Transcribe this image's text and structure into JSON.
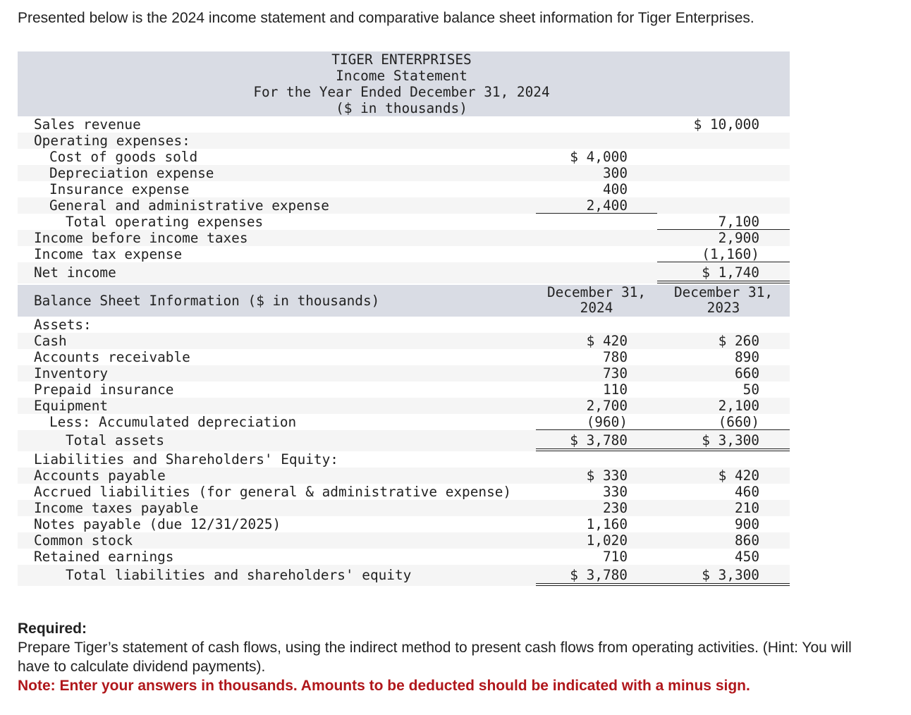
{
  "intro": "Presented below is the 2024 income statement and comparative balance sheet information for Tiger Enterprises.",
  "income_statement": {
    "header": [
      "TIGER ENTERPRISES",
      "Income Statement",
      "For the Year Ended December 31, 2024",
      "($ in thousands)"
    ],
    "rows": [
      {
        "label": "Sales revenue",
        "indent": 0,
        "c1": "",
        "c2": "$ 10,000",
        "shade": false
      },
      {
        "label": "Operating expenses:",
        "indent": 0,
        "c1": "",
        "c2": "",
        "shade": true
      },
      {
        "label": "Cost of goods sold",
        "indent": 1,
        "c1": "$ 4,000",
        "c2": "",
        "shade": false
      },
      {
        "label": "Depreciation expense",
        "indent": 1,
        "c1": "300",
        "c2": "",
        "shade": true
      },
      {
        "label": "Insurance expense",
        "indent": 1,
        "c1": "400",
        "c2": "",
        "shade": false
      },
      {
        "label": "General and administrative expense",
        "indent": 1,
        "c1": "2,400",
        "c2": "",
        "shade": true,
        "u1": "single"
      },
      {
        "label": "Total operating expenses",
        "indent": 2,
        "c1": "",
        "c2": "7,100",
        "shade": false,
        "u2": "single"
      },
      {
        "label": "Income before income taxes",
        "indent": 0,
        "c1": "",
        "c2": "2,900",
        "shade": true
      },
      {
        "label": "Income tax expense",
        "indent": 0,
        "c1": "",
        "c2": "(1,160)",
        "shade": false,
        "u2": "single"
      },
      {
        "label": "Net income",
        "indent": 0,
        "c1": "",
        "c2": "$ 1,740",
        "shade": true,
        "tall": true,
        "u2": "double"
      }
    ]
  },
  "balance_sheet": {
    "title": "Balance Sheet Information ($ in thousands)",
    "col1": "December 31, 2024",
    "col2": "December 31, 2023",
    "rows": [
      {
        "label": "Assets:",
        "indent": 0,
        "c1": "",
        "c2": "",
        "shade": false
      },
      {
        "label": "Cash",
        "indent": 0,
        "c1": "$ 420",
        "c2": "$ 260",
        "shade": true
      },
      {
        "label": "Accounts receivable",
        "indent": 0,
        "c1": "780",
        "c2": "890",
        "shade": false
      },
      {
        "label": "Inventory",
        "indent": 0,
        "c1": "730",
        "c2": "660",
        "shade": true
      },
      {
        "label": "Prepaid insurance",
        "indent": 0,
        "c1": "110",
        "c2": "50",
        "shade": false
      },
      {
        "label": "Equipment",
        "indent": 0,
        "c1": "2,700",
        "c2": "2,100",
        "shade": true
      },
      {
        "label": "Less: Accumulated depreciation",
        "indent": 1,
        "c1": "(960)",
        "c2": "(660)",
        "shade": false,
        "u1": "single",
        "u2": "single"
      },
      {
        "label": "Total assets",
        "indent": 2,
        "c1": "$ 3,780",
        "c2": "$ 3,300",
        "shade": true,
        "tall": true,
        "u1": "double",
        "u2": "double"
      },
      {
        "label": "Liabilities and Shareholders' Equity:",
        "indent": 0,
        "c1": "",
        "c2": "",
        "shade": false
      },
      {
        "label": "Accounts payable",
        "indent": 0,
        "c1": "$ 330",
        "c2": "$ 420",
        "shade": true
      },
      {
        "label": "Accrued liabilities (for general & administrative expense)",
        "indent": 0,
        "c1": "330",
        "c2": "460",
        "shade": false
      },
      {
        "label": "Income taxes payable",
        "indent": 0,
        "c1": "230",
        "c2": "210",
        "shade": true
      },
      {
        "label": "Notes payable (due 12/31/2025)",
        "indent": 0,
        "c1": "1,160",
        "c2": "900",
        "shade": false
      },
      {
        "label": "Common stock",
        "indent": 0,
        "c1": "1,020",
        "c2": "860",
        "shade": true
      },
      {
        "label": "Retained earnings",
        "indent": 0,
        "c1": "710",
        "c2": "450",
        "shade": false
      },
      {
        "label": "Total liabilities and shareholders' equity",
        "indent": 2,
        "c1": "$ 3,780",
        "c2": "$ 3,300",
        "shade": true,
        "tall": true,
        "u1": "double",
        "u2": "double"
      }
    ]
  },
  "required": {
    "heading": "Required:",
    "text": "Prepare Tiger’s statement of cash flows, using the indirect method to present cash flows from operating activities. (Hint: You will have to calculate dividend payments).",
    "note": "Note: Enter your answers in thousands. Amounts to be deducted should be indicated with a minus sign."
  },
  "colors": {
    "header_bg": "#d9dce4",
    "row_shade": "#f5f5f5",
    "note": "#b0171b"
  }
}
